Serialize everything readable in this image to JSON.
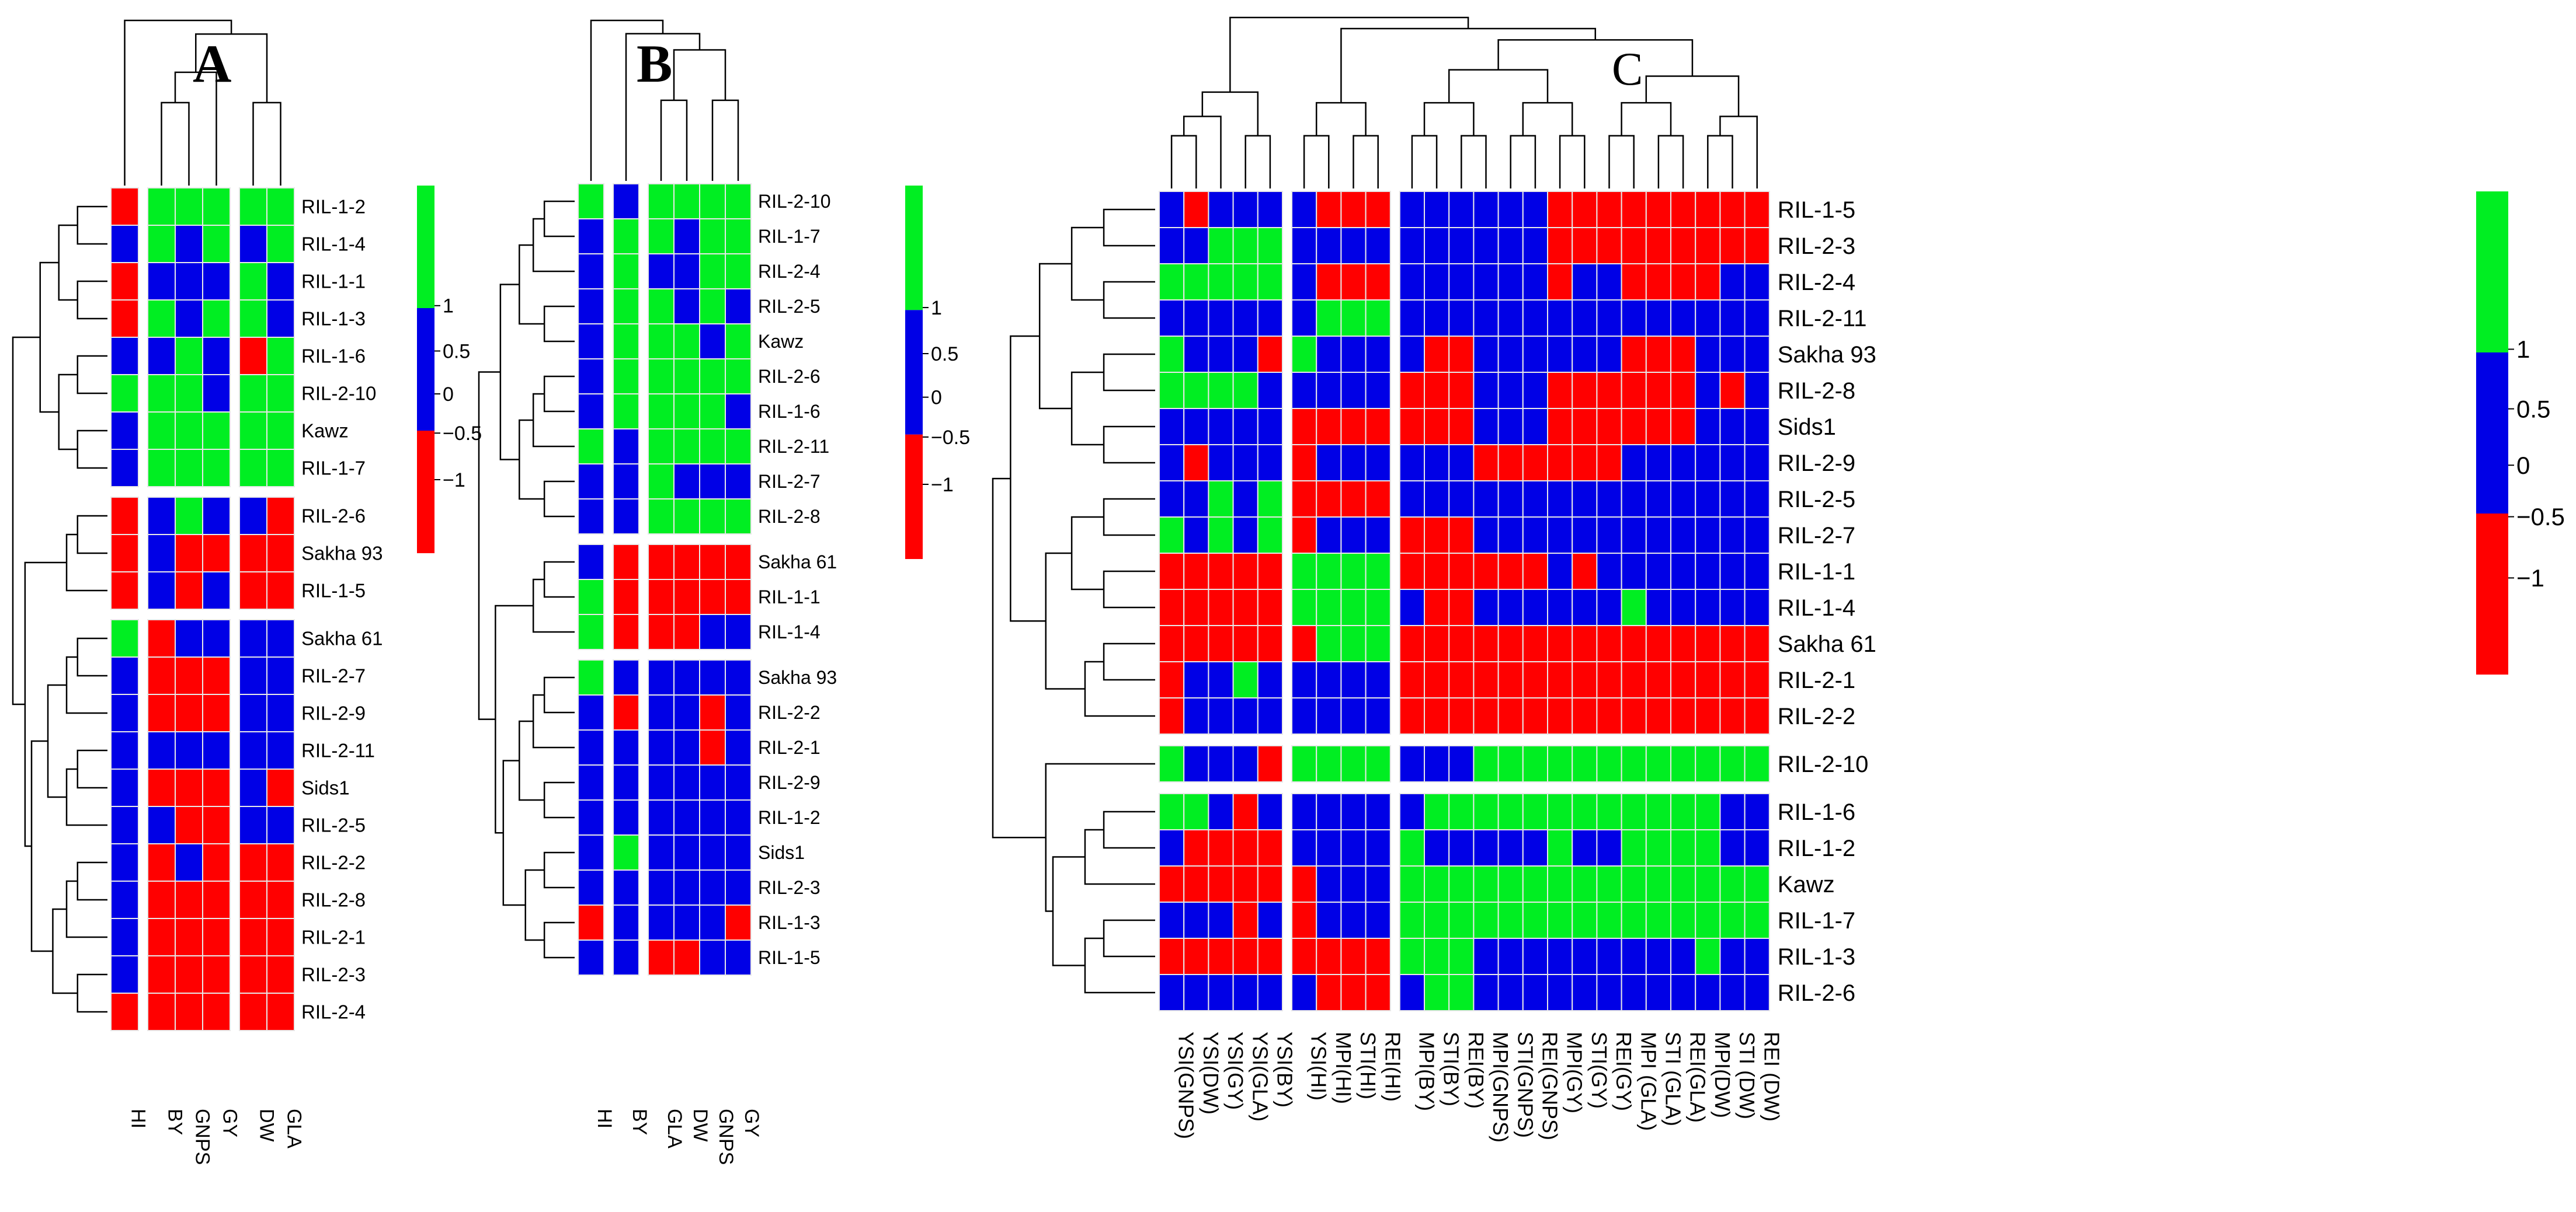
{
  "colors": {
    "1": "#00ee22",
    "0": "#0000e6",
    "-1": "#ff0000",
    "grid": "#e8e8e8"
  },
  "chart_data": [
    {
      "type": "heatmap",
      "title": "A",
      "legend": {
        "ticks": [
          "1",
          "0.5",
          "0",
          "−0.5",
          "−1"
        ]
      },
      "columns": [
        "HI",
        "BY",
        "GNPS",
        "GY",
        "DW",
        "GLA"
      ],
      "row_groups": [
        {
          "rows": [
            "RIL-1-2",
            "RIL-1-4",
            "RIL-1-1",
            "RIL-1-3",
            "RIL-1-6",
            "RIL-2-10",
            "Kawz",
            "RIL-1-7"
          ],
          "values": [
            [
              -1,
              1,
              1,
              1,
              1,
              1
            ],
            [
              0,
              1,
              0,
              1,
              0,
              1
            ],
            [
              -1,
              0,
              0,
              0,
              1,
              0
            ],
            [
              -1,
              1,
              0,
              1,
              1,
              0
            ],
            [
              0,
              0,
              1,
              0,
              -1,
              1
            ],
            [
              1,
              1,
              1,
              0,
              1,
              1
            ],
            [
              0,
              1,
              1,
              1,
              1,
              1
            ],
            [
              0,
              1,
              1,
              1,
              1,
              1
            ]
          ]
        },
        {
          "rows": [
            "RIL-2-6",
            "Sakha 93",
            "RIL-1-5"
          ],
          "values": [
            [
              -1,
              0,
              1,
              0,
              0,
              -1
            ],
            [
              -1,
              0,
              -1,
              -1,
              -1,
              -1
            ],
            [
              -1,
              0,
              -1,
              0,
              -1,
              -1
            ]
          ]
        },
        {
          "rows": [
            "Sakha 61",
            "RIL-2-7",
            "RIL-2-9",
            "RIL-2-11",
            "Sids1",
            "RIL-2-5",
            "RIL-2-2",
            "RIL-2-8",
            "RIL-2-1",
            "RIL-2-3",
            "RIL-2-4"
          ],
          "values": [
            [
              1,
              -1,
              0,
              0,
              0,
              0
            ],
            [
              0,
              -1,
              -1,
              -1,
              0,
              0
            ],
            [
              0,
              -1,
              -1,
              -1,
              0,
              0
            ],
            [
              0,
              0,
              0,
              0,
              0,
              0
            ],
            [
              0,
              -1,
              -1,
              -1,
              0,
              -1
            ],
            [
              0,
              0,
              -1,
              -1,
              0,
              0
            ],
            [
              0,
              -1,
              0,
              -1,
              -1,
              -1
            ],
            [
              0,
              -1,
              -1,
              -1,
              -1,
              -1
            ],
            [
              0,
              -1,
              -1,
              -1,
              -1,
              -1
            ],
            [
              0,
              -1,
              -1,
              -1,
              -1,
              -1
            ],
            [
              -1,
              -1,
              -1,
              -1,
              -1,
              -1
            ]
          ]
        }
      ]
    },
    {
      "type": "heatmap",
      "title": "B",
      "legend": {
        "ticks": [
          "1",
          "0.5",
          "0",
          "−0.5",
          "−1"
        ]
      },
      "columns": [
        "HI",
        "BY",
        "GLA",
        "DW",
        "GNPS",
        "GY"
      ],
      "row_groups": [
        {
          "rows": [
            "RIL-2-10",
            "RIL-1-7",
            "RIL-2-4",
            "RIL-2-5",
            "Kawz",
            "RIL-2-6",
            "RIL-1-6",
            "RIL-2-11",
            "RIL-2-7",
            "RIL-2-8"
          ],
          "values": [
            [
              1,
              0,
              1,
              1,
              1,
              1
            ],
            [
              0,
              1,
              1,
              0,
              1,
              1
            ],
            [
              0,
              1,
              0,
              0,
              1,
              1
            ],
            [
              0,
              1,
              1,
              0,
              1,
              0
            ],
            [
              0,
              1,
              1,
              1,
              0,
              1
            ],
            [
              0,
              1,
              1,
              1,
              1,
              1
            ],
            [
              0,
              1,
              1,
              1,
              1,
              0
            ],
            [
              1,
              0,
              1,
              1,
              1,
              1
            ],
            [
              0,
              0,
              1,
              0,
              0,
              0
            ],
            [
              0,
              0,
              1,
              1,
              1,
              1
            ]
          ]
        },
        {
          "rows": [
            "Sakha 61",
            "RIL-1-1",
            "RIL-1-4"
          ],
          "values": [
            [
              0,
              -1,
              -1,
              -1,
              -1,
              -1
            ],
            [
              1,
              -1,
              -1,
              -1,
              -1,
              -1
            ],
            [
              1,
              -1,
              -1,
              -1,
              0,
              0
            ]
          ]
        },
        {
          "rows": [
            "Sakha 93",
            "RIL-2-2",
            "RIL-2-1",
            "RIL-2-9",
            "RIL-1-2",
            "Sids1",
            "RIL-2-3",
            "RIL-1-3",
            "RIL-1-5"
          ],
          "values": [
            [
              1,
              0,
              0,
              0,
              0,
              0
            ],
            [
              0,
              -1,
              0,
              0,
              -1,
              0
            ],
            [
              0,
              0,
              0,
              0,
              -1,
              0
            ],
            [
              0,
              0,
              0,
              0,
              0,
              0
            ],
            [
              0,
              0,
              0,
              0,
              0,
              0
            ],
            [
              0,
              1,
              0,
              0,
              0,
              0
            ],
            [
              0,
              0,
              0,
              0,
              0,
              0
            ],
            [
              -1,
              0,
              0,
              0,
              0,
              -1
            ],
            [
              0,
              0,
              -1,
              -1,
              0,
              0
            ]
          ]
        }
      ]
    },
    {
      "type": "heatmap",
      "title": "C",
      "legend": {
        "ticks": [
          "1",
          "0.5",
          "0",
          "−0.5",
          "−1"
        ]
      },
      "column_groups": [
        [
          "YSI(GNPS)",
          "YSI(DW)",
          "YSI(GY)",
          "YSI(GLA)",
          "YSI(BY)"
        ],
        [
          "YSI(HI)",
          "MPI(HI)",
          "STI(HI)",
          "REI(HI)"
        ],
        [
          "MPI(BY)",
          "STI(BY)",
          "REI(BY)",
          "MPI(GNPS)",
          "STI(GNPS)",
          "REI(GNPS)",
          "MPI(GY)",
          "STI(GY)",
          "REI(GY)",
          "MPI (GLA)",
          "STI (GLA)",
          "REI(GLA)",
          "MPI(DW)",
          "STI (DW)",
          "REI (DW)"
        ]
      ],
      "row_groups": [
        {
          "rows": [
            "RIL-1-5",
            "RIL-2-3",
            "RIL-2-4",
            "RIL-2-11",
            "Sakha 93",
            "RIL-2-8",
            "Sids1",
            "RIL-2-9",
            "RIL-2-5",
            "RIL-2-7",
            "RIL-1-1",
            "RIL-1-4",
            "Sakha 61",
            "RIL-2-1",
            "RIL-2-2"
          ],
          "values": [
            [
              0,
              -1,
              0,
              0,
              0,
              0,
              -1,
              -1,
              -1,
              0,
              0,
              0,
              0,
              0,
              0,
              -1,
              -1,
              -1,
              -1,
              -1,
              -1,
              -1,
              -1,
              -1
            ],
            [
              0,
              0,
              1,
              1,
              1,
              0,
              0,
              0,
              0,
              0,
              0,
              0,
              0,
              0,
              0,
              -1,
              -1,
              -1,
              -1,
              -1,
              -1,
              -1,
              -1,
              -1
            ],
            [
              1,
              1,
              1,
              1,
              1,
              0,
              -1,
              -1,
              -1,
              0,
              0,
              0,
              0,
              0,
              0,
              -1,
              0,
              0,
              -1,
              -1,
              -1,
              -1,
              0,
              0
            ],
            [
              0,
              0,
              0,
              0,
              0,
              0,
              1,
              1,
              1,
              0,
              0,
              0,
              0,
              0,
              0,
              0,
              0,
              0,
              0,
              0,
              0,
              0,
              0,
              0
            ],
            [
              1,
              0,
              0,
              0,
              -1,
              1,
              0,
              0,
              0,
              0,
              -1,
              -1,
              0,
              0,
              0,
              0,
              0,
              0,
              -1,
              -1,
              -1,
              0,
              0,
              0
            ],
            [
              1,
              1,
              1,
              1,
              0,
              0,
              0,
              0,
              0,
              -1,
              -1,
              -1,
              0,
              0,
              0,
              -1,
              -1,
              -1,
              -1,
              -1,
              -1,
              0,
              -1,
              0
            ],
            [
              0,
              0,
              0,
              0,
              0,
              -1,
              -1,
              -1,
              -1,
              -1,
              -1,
              -1,
              0,
              0,
              0,
              -1,
              -1,
              -1,
              -1,
              -1,
              -1,
              0,
              0,
              0
            ],
            [
              0,
              -1,
              0,
              0,
              0,
              -1,
              0,
              0,
              0,
              0,
              0,
              0,
              -1,
              -1,
              -1,
              -1,
              -1,
              -1,
              0,
              0,
              0,
              0,
              0,
              0
            ],
            [
              0,
              0,
              1,
              0,
              1,
              -1,
              -1,
              -1,
              -1,
              0,
              0,
              0,
              0,
              0,
              0,
              0,
              0,
              0,
              0,
              0,
              0,
              0,
              0,
              0
            ],
            [
              1,
              0,
              1,
              0,
              1,
              -1,
              0,
              0,
              0,
              -1,
              -1,
              -1,
              0,
              0,
              0,
              0,
              0,
              0,
              0,
              0,
              0,
              0,
              0,
              0
            ],
            [
              -1,
              -1,
              -1,
              -1,
              -1,
              1,
              1,
              1,
              1,
              -1,
              -1,
              -1,
              -1,
              -1,
              -1,
              0,
              -1,
              0,
              0,
              0,
              0,
              0,
              0,
              0
            ],
            [
              -1,
              -1,
              -1,
              -1,
              -1,
              1,
              1,
              1,
              1,
              0,
              -1,
              -1,
              0,
              0,
              0,
              0,
              0,
              0,
              1,
              0,
              0,
              0,
              0,
              0
            ],
            [
              -1,
              -1,
              -1,
              -1,
              -1,
              -1,
              1,
              1,
              1,
              -1,
              -1,
              -1,
              -1,
              -1,
              -1,
              -1,
              -1,
              -1,
              -1,
              -1,
              -1,
              -1,
              -1,
              -1
            ],
            [
              -1,
              0,
              0,
              1,
              0,
              0,
              0,
              0,
              0,
              -1,
              -1,
              -1,
              -1,
              -1,
              -1,
              -1,
              -1,
              -1,
              -1,
              -1,
              -1,
              -1,
              -1,
              -1
            ],
            [
              -1,
              0,
              0,
              0,
              0,
              0,
              0,
              0,
              0,
              -1,
              -1,
              -1,
              -1,
              -1,
              -1,
              -1,
              -1,
              -1,
              -1,
              -1,
              -1,
              -1,
              -1,
              -1
            ]
          ]
        },
        {
          "rows": [
            "RIL-2-10"
          ],
          "values": [
            [
              1,
              0,
              0,
              0,
              -1,
              1,
              1,
              1,
              1,
              0,
              0,
              0,
              1,
              1,
              1,
              1,
              1,
              1,
              1,
              1,
              1,
              1,
              1,
              1
            ]
          ]
        },
        {
          "rows": [
            "RIL-1-6",
            "RIL-1-2",
            "Kawz",
            "RIL-1-7",
            "RIL-1-3",
            "RIL-2-6"
          ],
          "values": [
            [
              1,
              1,
              0,
              -1,
              0,
              0,
              0,
              0,
              0,
              0,
              1,
              1,
              1,
              1,
              1,
              1,
              1,
              1,
              1,
              1,
              1,
              1,
              0,
              0
            ],
            [
              0,
              -1,
              -1,
              -1,
              -1,
              0,
              0,
              0,
              0,
              1,
              0,
              0,
              0,
              0,
              0,
              1,
              0,
              0,
              1,
              1,
              1,
              1,
              0,
              0
            ],
            [
              -1,
              -1,
              -1,
              -1,
              -1,
              -1,
              0,
              0,
              0,
              1,
              1,
              1,
              1,
              1,
              1,
              1,
              1,
              1,
              1,
              1,
              1,
              1,
              1,
              1
            ],
            [
              0,
              0,
              0,
              -1,
              0,
              -1,
              0,
              0,
              0,
              1,
              1,
              1,
              1,
              1,
              1,
              1,
              1,
              1,
              1,
              1,
              1,
              1,
              1,
              1
            ],
            [
              -1,
              -1,
              -1,
              -1,
              -1,
              -1,
              -1,
              -1,
              -1,
              1,
              1,
              1,
              0,
              0,
              0,
              0,
              0,
              0,
              0,
              0,
              0,
              1,
              0,
              0
            ],
            [
              0,
              0,
              0,
              0,
              0,
              0,
              -1,
              -1,
              -1,
              0,
              1,
              1,
              0,
              0,
              0,
              0,
              0,
              0,
              0,
              0,
              0,
              0,
              0,
              0
            ]
          ]
        }
      ]
    }
  ]
}
